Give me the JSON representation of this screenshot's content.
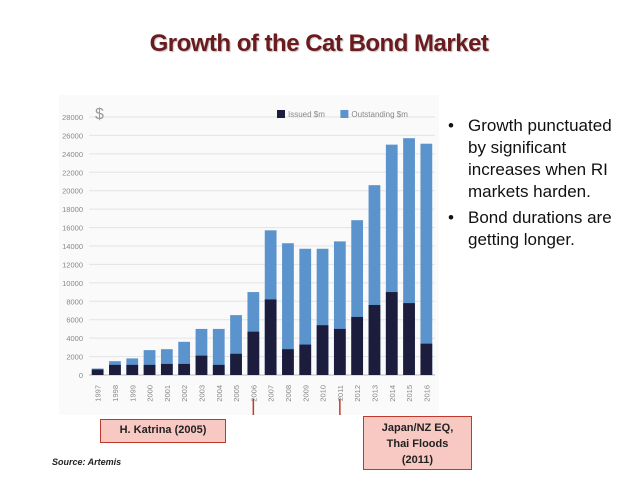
{
  "slide": {
    "title": "Growth of the Cat Bond Market",
    "bullets": [
      "Growth punctuated by significant increases when RI markets harden.",
      "Bond durations are getting longer."
    ],
    "callouts": {
      "katrina": "H. Katrina (2005)",
      "japan": [
        "Japan/NZ EQ,",
        "Thai Floods",
        "(2011)"
      ]
    },
    "source": "Source: Artemis"
  },
  "chart_data": {
    "type": "bar",
    "currency_symbol": "$",
    "categories": [
      "1997",
      "1998",
      "1999",
      "2000",
      "2001",
      "2002",
      "2003",
      "2004",
      "2005",
      "2006",
      "2007",
      "2008",
      "2009",
      "2010",
      "2011",
      "2012",
      "2013",
      "2014",
      "2015",
      "2016"
    ],
    "series": [
      {
        "name": "Issued $m",
        "color": "#1c1c3c",
        "values": [
          600,
          1100,
          1100,
          1100,
          1200,
          1200,
          2100,
          1100,
          2300,
          4700,
          8200,
          2800,
          3300,
          5400,
          5000,
          6300,
          7600,
          9000,
          7800,
          3400
        ]
      },
      {
        "name": "Outstanding $m",
        "color": "#5b93cc",
        "values": [
          700,
          1500,
          1800,
          2700,
          2800,
          3600,
          5000,
          5000,
          6500,
          9000,
          15700,
          14300,
          13700,
          13700,
          14500,
          16800,
          20600,
          25000,
          25700,
          25100
        ]
      }
    ],
    "bar_mode": "overlay",
    "yticks": [
      0,
      2000,
      4000,
      6000,
      8000,
      10000,
      12000,
      14000,
      16000,
      18000,
      20000,
      22000,
      24000,
      26000,
      28000
    ],
    "ylim": [
      0,
      28000
    ],
    "legend": "top-right",
    "grid": true,
    "markers": [
      {
        "category": "2006",
        "callout": "katrina"
      },
      {
        "category": "2011",
        "callout": "japan"
      }
    ]
  }
}
